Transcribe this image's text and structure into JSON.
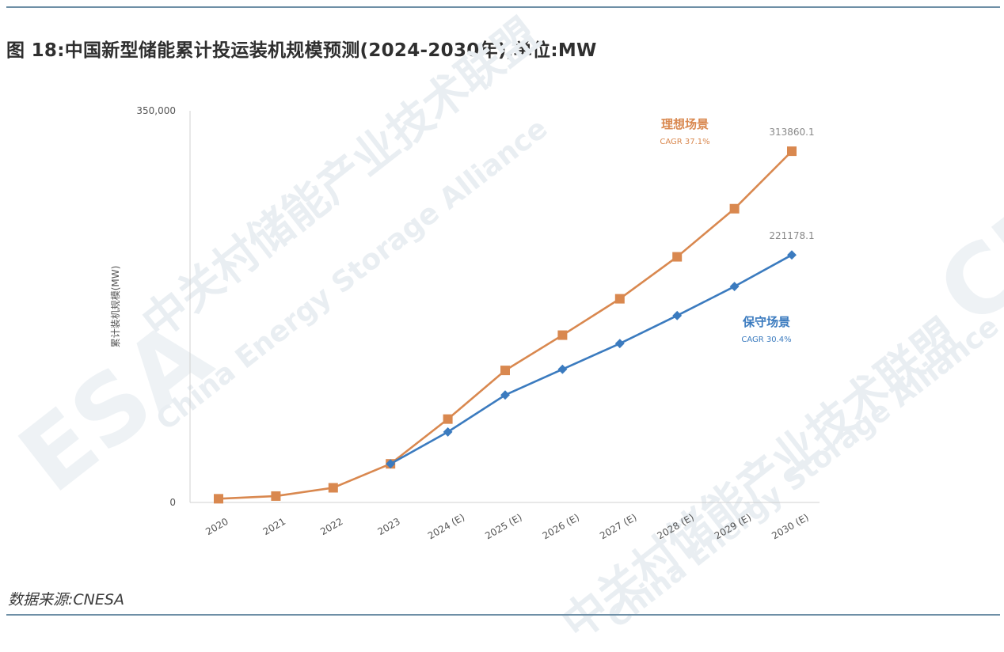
{
  "figure": {
    "title": "图 18:中国新型储能累计投运装机规模预测(2024-2030年),单位:MW",
    "source": "数据来源:CNESA"
  },
  "watermark": {
    "cn": "中关村储能产业技术联盟",
    "en": "China Energy Storage Alliance",
    "abbr_left": "ESA",
    "abbr_right": "CN"
  },
  "colors": {
    "ideal": "#d9884f",
    "conservative": "#3b7bbf",
    "axis": "#d0d0d0",
    "rule": "#6e8fa6"
  },
  "chart_data": {
    "type": "line",
    "title": "",
    "xlabel": "",
    "ylabel": "累计装机规模(MW)",
    "ylim": [
      0,
      350000
    ],
    "y_ticks": [
      "0",
      "350,000"
    ],
    "categories": [
      "2020",
      "2021",
      "2022",
      "2023",
      "2024 (E)",
      "2025 (E)",
      "2026 (E)",
      "2027 (E)",
      "2028 (E)",
      "2029 (E)",
      "2030 (E)"
    ],
    "grid": false,
    "series": [
      {
        "name": "理想场景",
        "cagr": "CAGR 37.1%",
        "marker": "square",
        "color": "#d9884f",
        "values": [
          3300,
          5700,
          13100,
          34500,
          74500,
          118000,
          149500,
          182000,
          219500,
          262500,
          313860.1
        ],
        "end_label": "313860.1"
      },
      {
        "name": "保守场景",
        "cagr": "CAGR 30.4%",
        "marker": "diamond",
        "color": "#3b7bbf",
        "values": [
          null,
          null,
          null,
          34500,
          63000,
          96000,
          119000,
          142000,
          167000,
          193000,
          221178.1
        ],
        "end_label": "221178.1"
      }
    ]
  }
}
